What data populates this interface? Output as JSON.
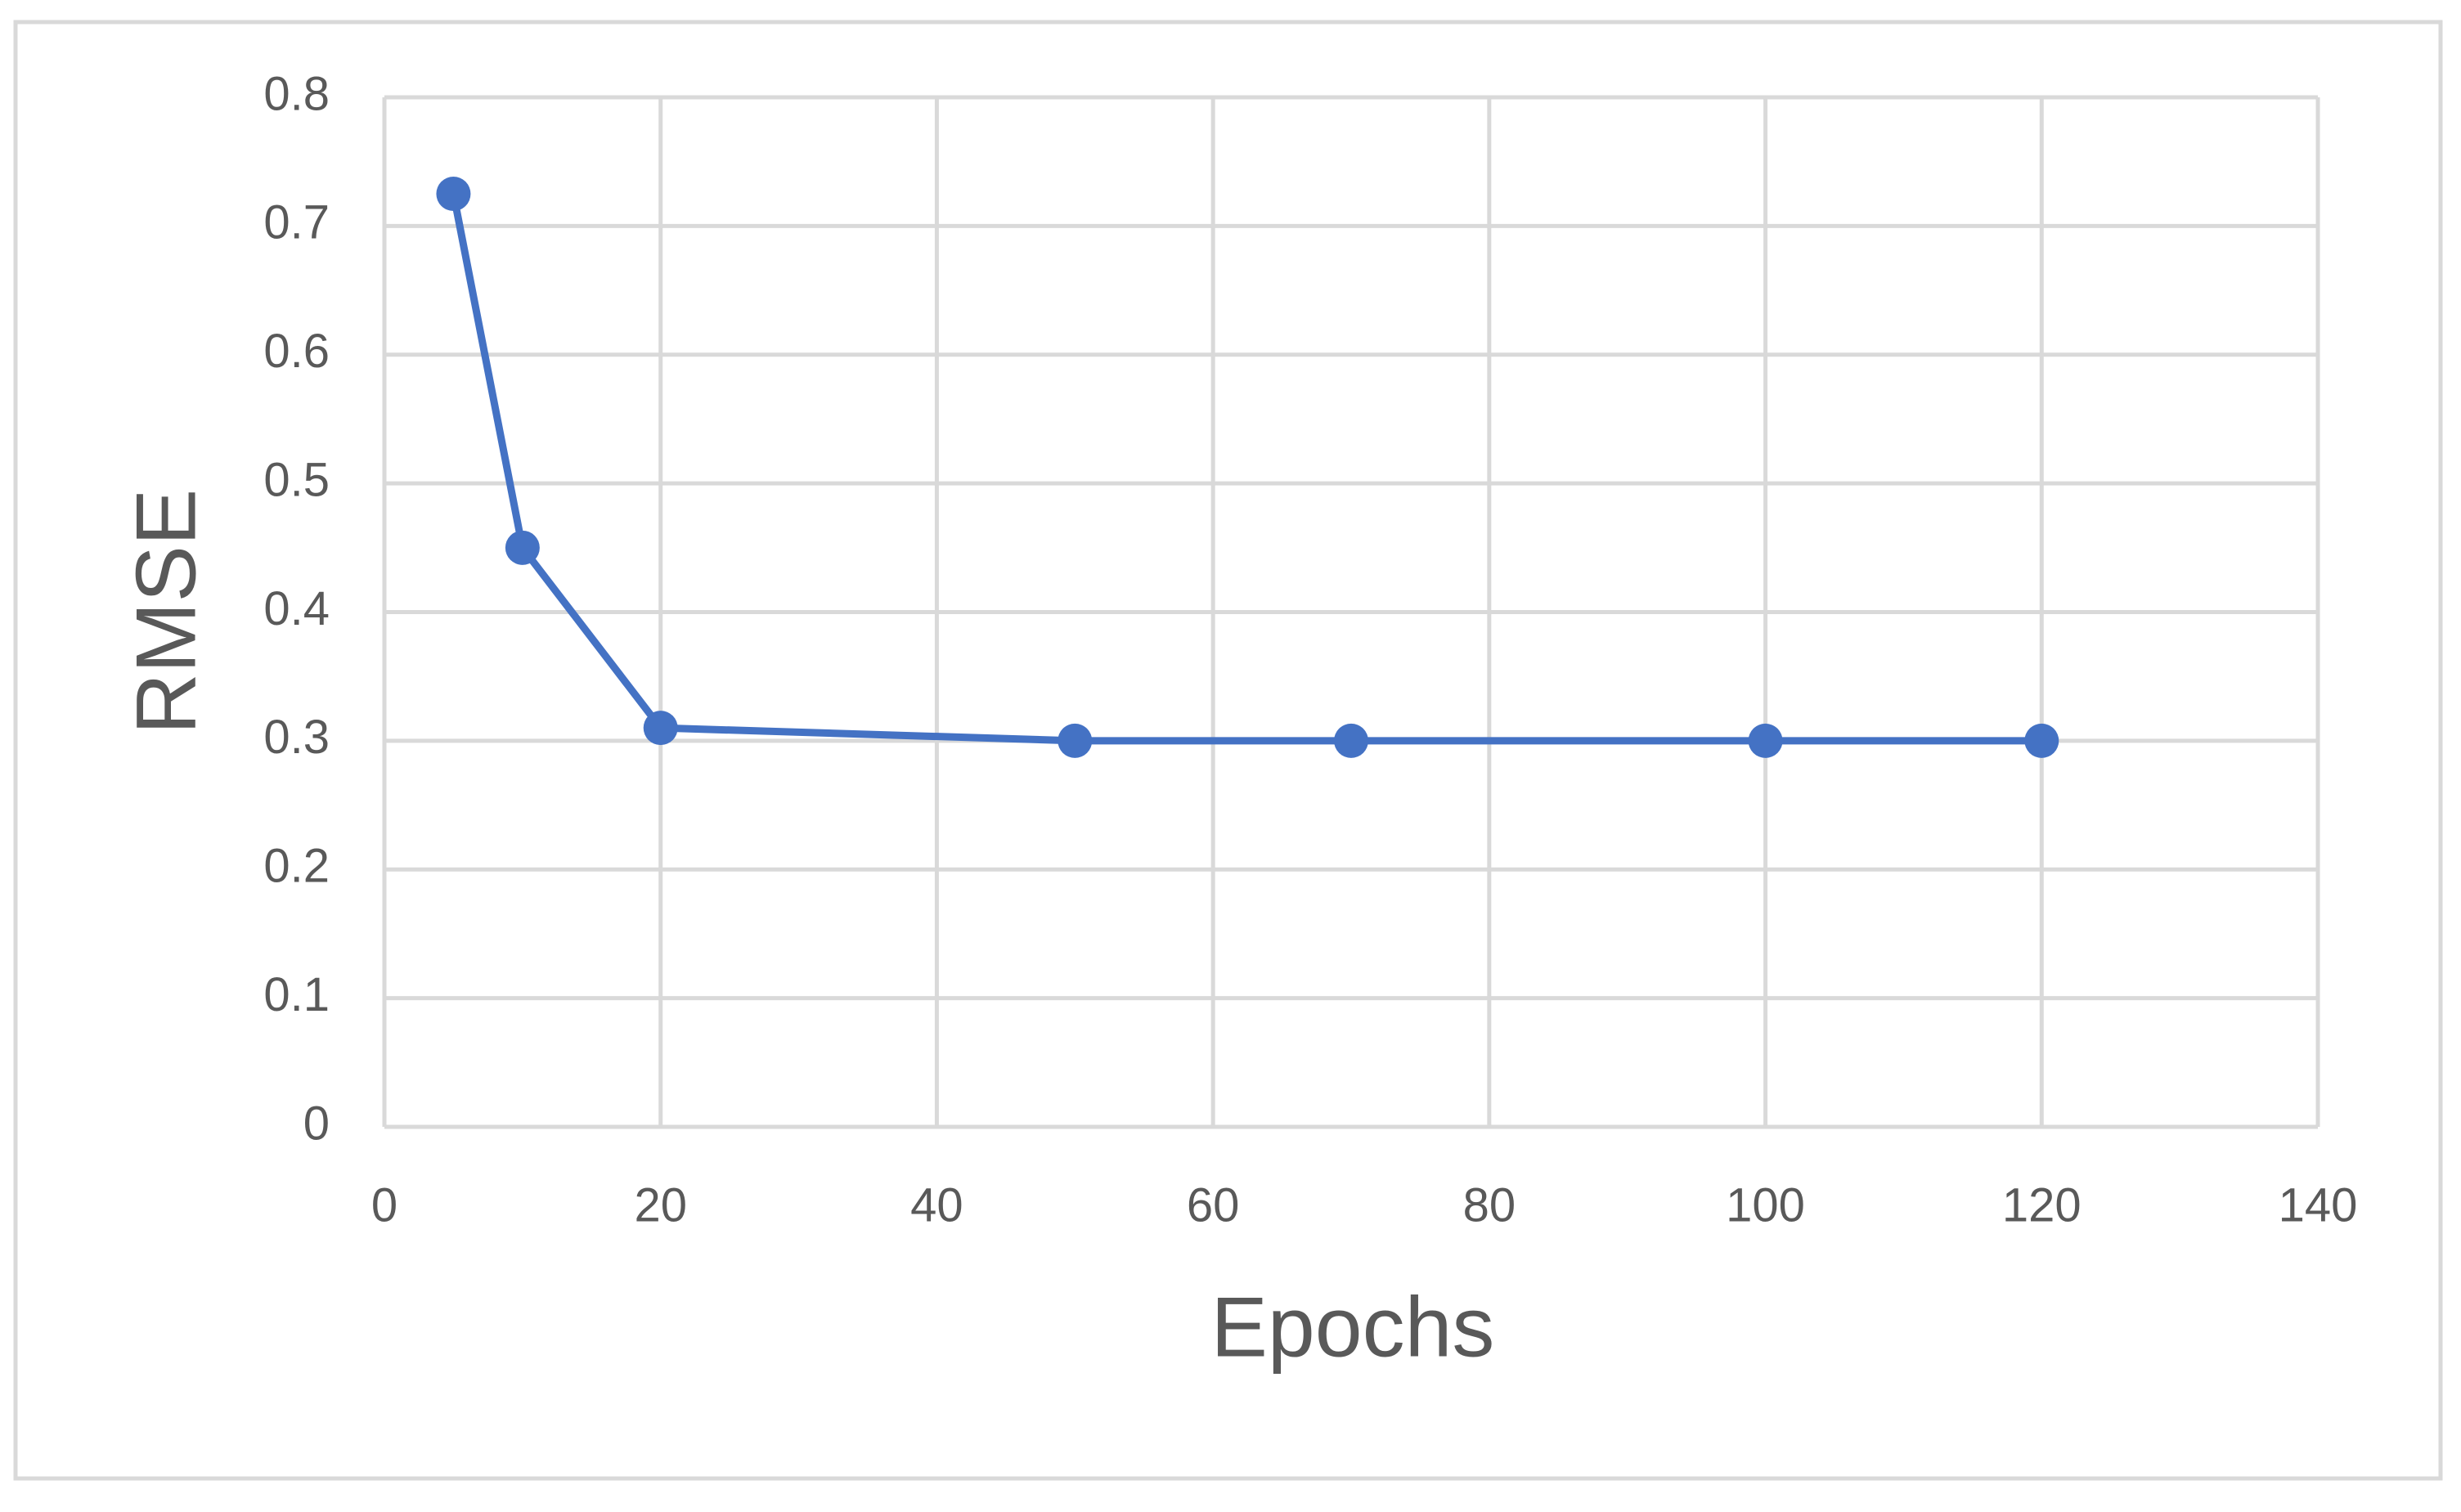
{
  "chart_data": {
    "type": "line",
    "x_label": "Epochs",
    "y_label": "RMSE",
    "x": [
      5,
      10,
      20,
      50,
      70,
      100,
      120
    ],
    "series": [
      {
        "name": "RMSE",
        "color": "#4472c4",
        "values": [
          0.725,
          0.45,
          0.31,
          0.3,
          0.3,
          0.3,
          0.3
        ]
      }
    ],
    "xlim": [
      0,
      140
    ],
    "xticks": [
      0,
      20,
      40,
      60,
      80,
      100,
      120,
      140
    ],
    "ylim": [
      0,
      0.8
    ],
    "yticks": [
      0,
      0.1,
      0.2,
      0.3,
      0.4,
      0.5,
      0.6,
      0.7,
      0.8
    ],
    "grid": true
  }
}
